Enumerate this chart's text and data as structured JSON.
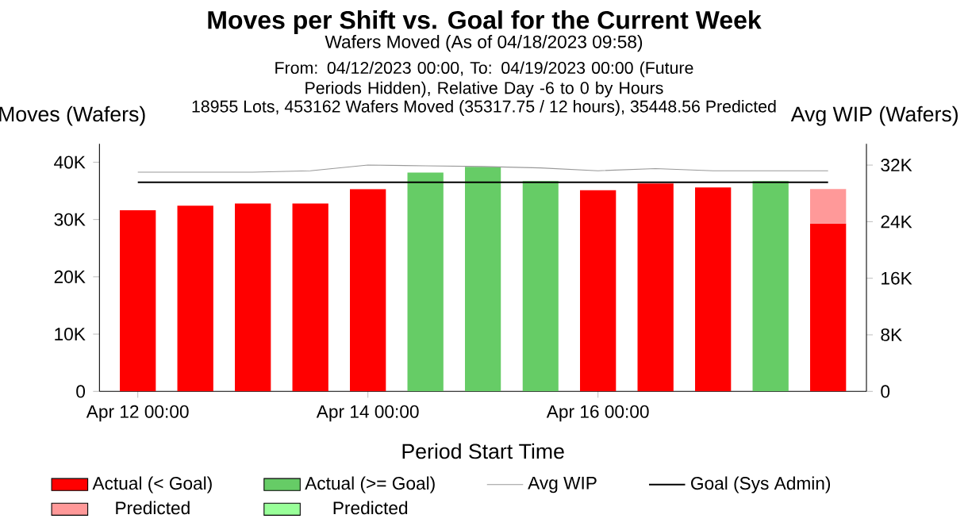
{
  "chart_data": {
    "type": "bar",
    "title": "Moves per Shift vs. Goal for the Current Week",
    "subtitle": "Wafers Moved (As of 04/18/2023 09:58)",
    "annotations": [
      "From: 04/12/2023 00:00, To: 04/19/2023 00:00 (Future Periods Hidden), Relative Day -6 to 0 by Hours",
      "18955 Lots, 453162 Wafers Moved (35317.75 / 12 hours), 35448.56 Predicted"
    ],
    "xlabel": "Period Start Time",
    "ylabel": "Moves (Wafers)",
    "y2label": "Avg WIP (Wafers)",
    "x": [
      "2023-04-12T00:00",
      "2023-04-12T12:00",
      "2023-04-13T00:00",
      "2023-04-13T12:00",
      "2023-04-14T00:00",
      "2023-04-14T12:00",
      "2023-04-15T00:00",
      "2023-04-15T12:00",
      "2023-04-16T00:00",
      "2023-04-16T12:00",
      "2023-04-17T00:00",
      "2023-04-17T12:00",
      "2023-04-18T00:00"
    ],
    "stacked": true,
    "series": [
      {
        "name": "Actual (< Goal)",
        "color": "#ff0000",
        "values": [
          31600,
          32400,
          32800,
          32800,
          35300,
          null,
          null,
          null,
          35100,
          36300,
          35600,
          null,
          29300
        ]
      },
      {
        "name": "Actual (>= Goal)",
        "color": "#66cc66",
        "values": [
          null,
          null,
          null,
          null,
          null,
          38200,
          39200,
          36700,
          null,
          null,
          null,
          36700,
          null
        ]
      },
      {
        "name": "Avg WIP",
        "type": "line",
        "axis": "y2",
        "color": "#999999",
        "values": [
          31000,
          31000,
          31000,
          31200,
          32000,
          31900,
          31800,
          31600,
          31200,
          31500,
          31200,
          31200,
          31200
        ]
      },
      {
        "name": "Goal (Sys Admin)",
        "type": "line",
        "color": "#000000",
        "values": [
          36500,
          36500,
          36500,
          36500,
          36500,
          36500,
          36500,
          36500,
          36500,
          36500,
          36500,
          36500,
          36500
        ]
      },
      {
        "name": "Predicted",
        "color": "#ff9999",
        "values": [
          null,
          null,
          null,
          null,
          null,
          null,
          null,
          null,
          null,
          null,
          null,
          null,
          6000
        ]
      },
      {
        "name": "Predicted",
        "color": "#99ff99",
        "values": [
          null,
          null,
          null,
          null,
          null,
          null,
          null,
          null,
          null,
          null,
          null,
          null,
          null
        ]
      }
    ],
    "xlim": [
      "2023-04-11T16:00",
      "2023-04-18T08:00"
    ],
    "xticks": [
      {
        "value": "2023-04-12T00:00",
        "label": "Apr 12 00:00"
      },
      {
        "value": "2023-04-14T00:00",
        "label": "Apr 14 00:00"
      },
      {
        "value": "2023-04-16T00:00",
        "label": "Apr 16 00:00"
      }
    ],
    "ylim": [
      0,
      43200
    ],
    "yticks": [
      0,
      {
        "value": 10000,
        "label": "10K"
      },
      {
        "value": 20000,
        "label": "20K"
      },
      {
        "value": 30000,
        "label": "30K"
      },
      {
        "value": 40000,
        "label": "40K"
      }
    ],
    "y2lim": [
      0,
      35000
    ],
    "y2ticks": [
      0,
      {
        "value": 8000,
        "label": "8K"
      },
      {
        "value": 16000,
        "label": "16K"
      },
      {
        "value": 24000,
        "label": "24K"
      },
      {
        "value": 32000,
        "label": "32K"
      }
    ],
    "legend": "bottom",
    "grid": false,
    "marker": "none"
  }
}
